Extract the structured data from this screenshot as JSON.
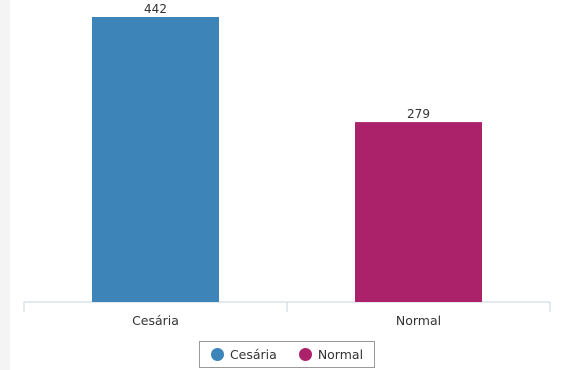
{
  "chart_data": {
    "type": "bar",
    "categories": [
      "Cesária",
      "Normal"
    ],
    "values": [
      442,
      279
    ],
    "colors": [
      "#3d84b8",
      "#ab226b"
    ],
    "data_labels": [
      "442",
      "279"
    ],
    "ylim": [
      0,
      442
    ],
    "grid": false,
    "legend": {
      "placement": "bottom-center",
      "entries": [
        {
          "label": "Cesária",
          "color": "#3d84b8"
        },
        {
          "label": "Normal",
          "color": "#ab226b"
        }
      ]
    }
  }
}
